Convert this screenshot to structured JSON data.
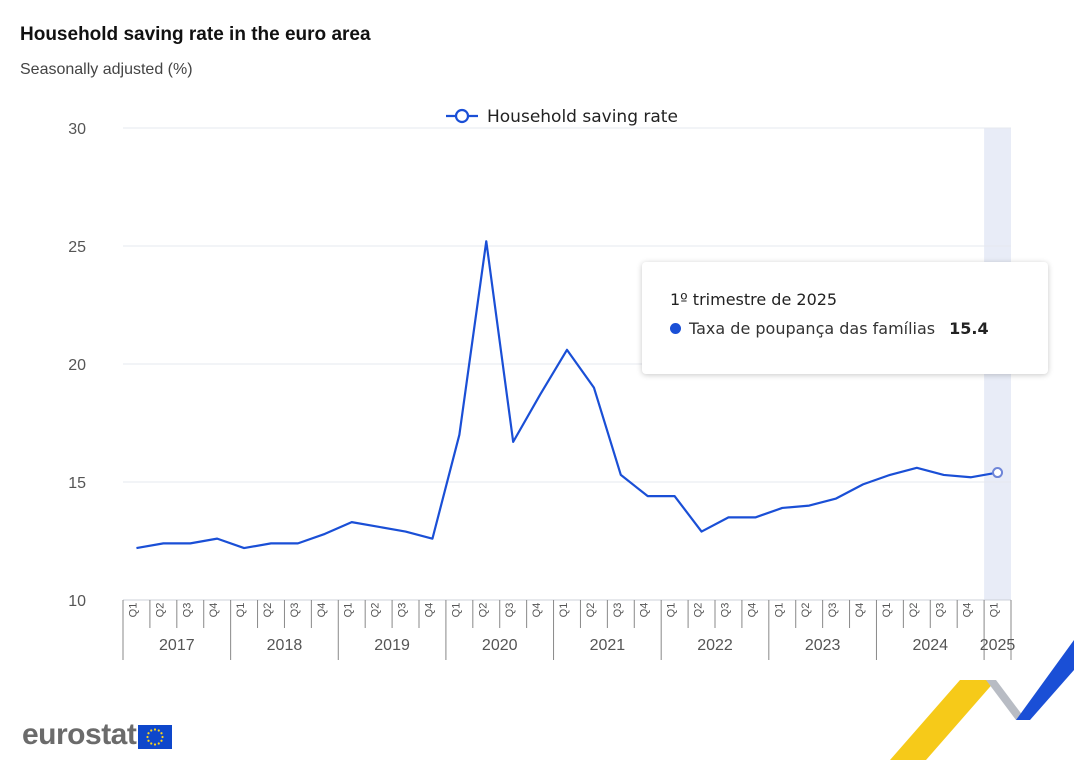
{
  "header": {
    "title": "Household saving rate in the euro area",
    "subtitle": "Seasonally adjusted (%)"
  },
  "tooltip": {
    "period": "1º trimestre de 2025",
    "series_label": "Taxa de poupança das famílias",
    "value": "15.4"
  },
  "logo": {
    "text": "eurostat"
  },
  "colors": {
    "line": "#1a4fd6",
    "highlight_band": "#e8ecf7",
    "grid": "#e6e8ef"
  },
  "chart_data": {
    "type": "line",
    "title": "Household saving rate in the euro area",
    "subtitle": "Seasonally adjusted (%)",
    "ylim": [
      10,
      30
    ],
    "yticks": [
      "10",
      "15",
      "20",
      "25",
      "30"
    ],
    "grid": true,
    "legend": "top-center",
    "highlight": "2025 Q1",
    "years": [
      "2017",
      "2018",
      "2019",
      "2020",
      "2021",
      "2022",
      "2023",
      "2024",
      "2025"
    ],
    "quarters": [
      "Q1",
      "Q2",
      "Q3",
      "Q4"
    ],
    "categories": [
      "2017 Q1",
      "2017 Q2",
      "2017 Q3",
      "2017 Q4",
      "2018 Q1",
      "2018 Q2",
      "2018 Q3",
      "2018 Q4",
      "2019 Q1",
      "2019 Q2",
      "2019 Q3",
      "2019 Q4",
      "2020 Q1",
      "2020 Q2",
      "2020 Q3",
      "2020 Q4",
      "2021 Q1",
      "2021 Q2",
      "2021 Q3",
      "2021 Q4",
      "2022 Q1",
      "2022 Q2",
      "2022 Q3",
      "2022 Q4",
      "2023 Q1",
      "2023 Q2",
      "2023 Q3",
      "2023 Q4",
      "2024 Q1",
      "2024 Q2",
      "2024 Q3",
      "2024 Q4",
      "2025 Q1"
    ],
    "series": [
      {
        "name": "Household saving rate",
        "values": [
          12.2,
          12.4,
          12.4,
          12.6,
          12.2,
          12.4,
          12.4,
          12.8,
          13.3,
          13.1,
          12.9,
          12.6,
          17.0,
          25.2,
          16.7,
          18.7,
          20.6,
          19.0,
          15.3,
          14.4,
          14.4,
          12.9,
          13.5,
          13.5,
          13.9,
          14.0,
          14.3,
          14.9,
          15.3,
          15.6,
          15.3,
          15.2,
          15.4
        ]
      }
    ]
  }
}
